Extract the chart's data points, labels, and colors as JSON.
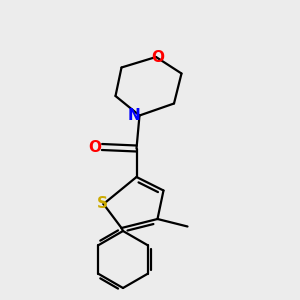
{
  "background_color": "#ececec",
  "bond_color": "#000000",
  "atom_colors": {
    "O_carbonyl": "#ff0000",
    "O_morpholine": "#ff0000",
    "N": "#0000ff",
    "S": "#ccaa00"
  },
  "figsize": [
    3.0,
    3.0
  ],
  "dpi": 100,
  "xlim": [
    0,
    10
  ],
  "ylim": [
    0,
    10
  ],
  "lw": 1.6
}
